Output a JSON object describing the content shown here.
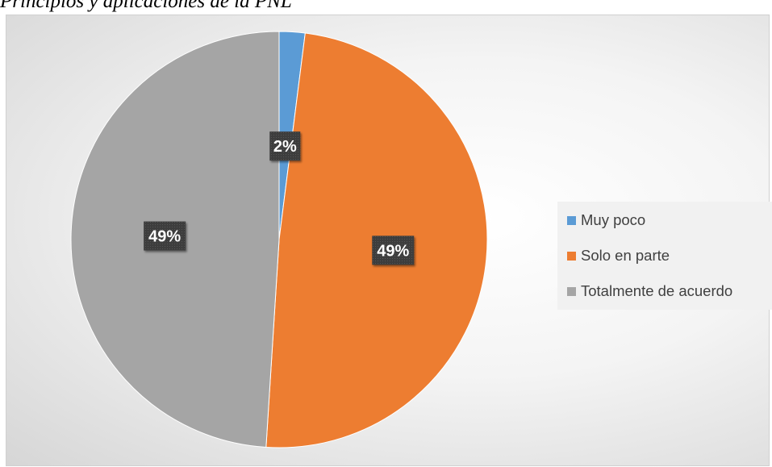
{
  "caption": "Principios y aplicaciones de la PNL",
  "chart_data": {
    "type": "pie",
    "categories": [
      "Muy poco",
      "Solo en parte",
      "Totalmente de acuerdo"
    ],
    "values": [
      2,
      49,
      49
    ],
    "data_labels": [
      "2%",
      "49%",
      "49%"
    ],
    "colors": [
      "#5b9bd5",
      "#ed7d31",
      "#a5a5a5"
    ],
    "legend_position": "right",
    "label_style": {
      "fill": "#404040",
      "text": "#ffffff"
    }
  }
}
